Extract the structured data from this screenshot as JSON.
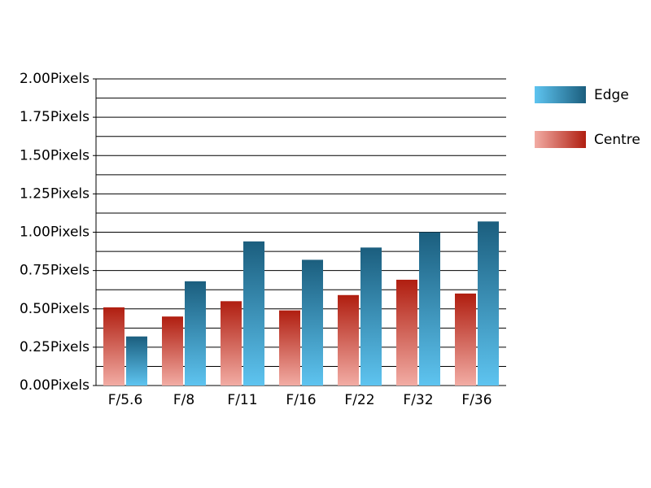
{
  "chart_data": {
    "type": "bar",
    "categories": [
      "F/5.6",
      "F/8",
      "F/11",
      "F/16",
      "F/22",
      "F/32",
      "F/36"
    ],
    "series": [
      {
        "name": "Edge",
        "color": "#1b5e7e",
        "color_light": "#5ec4f0",
        "values": [
          0.32,
          0.68,
          0.94,
          0.82,
          0.9,
          1.0,
          1.07
        ]
      },
      {
        "name": "Centre",
        "color": "#b01e10",
        "color_light": "#f2aca4",
        "values": [
          0.51,
          0.45,
          0.55,
          0.49,
          0.59,
          0.69,
          0.6
        ]
      }
    ],
    "ylim": [
      0,
      2
    ],
    "yticks": [
      {
        "value": 0,
        "label": "0.00Pixels"
      },
      {
        "value": 0.25,
        "label": "0.25Pixels"
      },
      {
        "value": 0.5,
        "label": "0.50Pixels"
      },
      {
        "value": 0.75,
        "label": "0.75Pixels"
      },
      {
        "value": 1,
        "label": "1.00Pixels"
      },
      {
        "value": 1.25,
        "label": "1.25Pixels"
      },
      {
        "value": 1.5,
        "label": "1.50Pixels"
      },
      {
        "value": 1.75,
        "label": "1.75Pixels"
      },
      {
        "value": 2,
        "label": "2.00Pixels"
      }
    ],
    "minor_yticks": [
      0.125,
      0.375,
      0.625,
      0.875,
      1.125,
      1.375,
      1.625,
      1.875
    ],
    "grid": true
  }
}
